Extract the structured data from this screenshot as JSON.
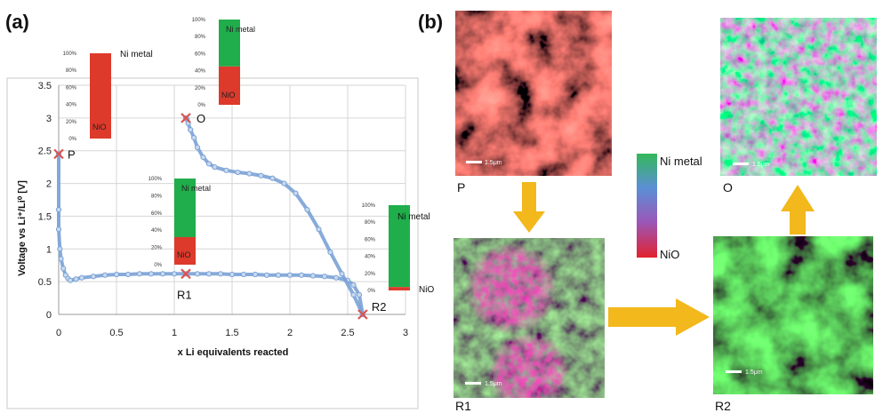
{
  "panel_a": {
    "label": "(a)"
  },
  "panel_b": {
    "label": "(b)"
  },
  "colors": {
    "nio": "#dd3a2c",
    "ni_metal": "#1fae4b",
    "curve": "#7aa2d6",
    "arrow": "#f2b81c",
    "marker": "#d9534f"
  },
  "chart_data": {
    "type": "line",
    "xlabel": "x Li equivalents reacted",
    "ylabel": "Voltage vs Li⁺/Li⁰ [V]",
    "xlim": [
      0,
      3
    ],
    "ylim": [
      0,
      3.5
    ],
    "xticks": [
      "0",
      "0.5",
      "1",
      "1.5",
      "2",
      "2.5",
      "3"
    ],
    "yticks": [
      "0",
      "0.5",
      "1",
      "1.5",
      "2",
      "2.5",
      "3",
      "3.5"
    ],
    "grid": true,
    "series": [
      {
        "values_x": [
          0.0,
          0.0,
          0.0,
          0.01,
          0.02,
          0.04,
          0.06,
          0.08,
          0.1,
          0.15,
          0.2,
          0.3,
          0.4,
          0.5,
          0.6,
          0.7,
          0.8,
          0.9,
          1.0,
          1.1,
          1.2,
          1.3,
          1.4,
          1.5,
          1.6,
          1.7,
          1.8,
          1.9,
          2.0,
          2.1,
          2.2,
          2.3,
          2.4,
          2.5,
          2.55,
          2.6,
          2.63
        ],
        "values_y": [
          2.45,
          1.6,
          1.3,
          1.0,
          0.85,
          0.7,
          0.6,
          0.55,
          0.52,
          0.54,
          0.56,
          0.58,
          0.6,
          0.61,
          0.61,
          0.62,
          0.62,
          0.62,
          0.62,
          0.62,
          0.62,
          0.62,
          0.62,
          0.61,
          0.61,
          0.61,
          0.6,
          0.6,
          0.6,
          0.6,
          0.59,
          0.58,
          0.56,
          0.52,
          0.45,
          0.3,
          0.0
        ]
      },
      {
        "values_x": [
          2.63,
          2.55,
          2.45,
          2.35,
          2.25,
          2.15,
          2.05,
          1.95,
          1.85,
          1.75,
          1.65,
          1.55,
          1.45,
          1.35,
          1.3,
          1.25,
          1.2,
          1.17,
          1.14,
          1.12,
          1.11,
          1.1
        ],
        "values_y": [
          0.0,
          0.3,
          0.62,
          0.95,
          1.3,
          1.6,
          1.85,
          2.0,
          2.08,
          2.12,
          2.15,
          2.17,
          2.2,
          2.25,
          2.3,
          2.4,
          2.55,
          2.7,
          2.82,
          2.92,
          2.98,
          3.0
        ]
      }
    ],
    "points": [
      {
        "label": "P",
        "x": 0.0,
        "y": 2.45
      },
      {
        "label": "O",
        "x": 1.1,
        "y": 3.0
      },
      {
        "label": "R1",
        "x": 1.1,
        "y": 0.62
      },
      {
        "label": "R2",
        "x": 2.63,
        "y": 0.0
      }
    ],
    "composition_bars": [
      {
        "state": "P",
        "nio_pct": 100,
        "ni_metal_pct": 0,
        "top_label": "Ni metal",
        "bottom_label": "NiO"
      },
      {
        "state": "O",
        "nio_pct": 45,
        "ni_metal_pct": 55,
        "top_label": "Ni metal",
        "bottom_label": "NiO"
      },
      {
        "state": "R1",
        "nio_pct": 32,
        "ni_metal_pct": 68,
        "top_label": "Ni metal",
        "bottom_label": "NiO"
      },
      {
        "state": "R2",
        "nio_pct": 4,
        "ni_metal_pct": 96,
        "top_label": "Ni metal",
        "bottom_label": "NiO"
      }
    ],
    "bar_ticks": [
      "0%",
      "20%",
      "40%",
      "60%",
      "80%",
      "100%"
    ]
  },
  "maps": {
    "P": {
      "label": "P",
      "scale": "1.5μm"
    },
    "O": {
      "label": "O",
      "scale": "1.5μm"
    },
    "R1": {
      "label": "R1",
      "scale": "1.5μm"
    },
    "R2": {
      "label": "R2",
      "scale": "1.5μm"
    }
  },
  "legend": {
    "top": "Ni metal",
    "bottom": "NiO"
  }
}
